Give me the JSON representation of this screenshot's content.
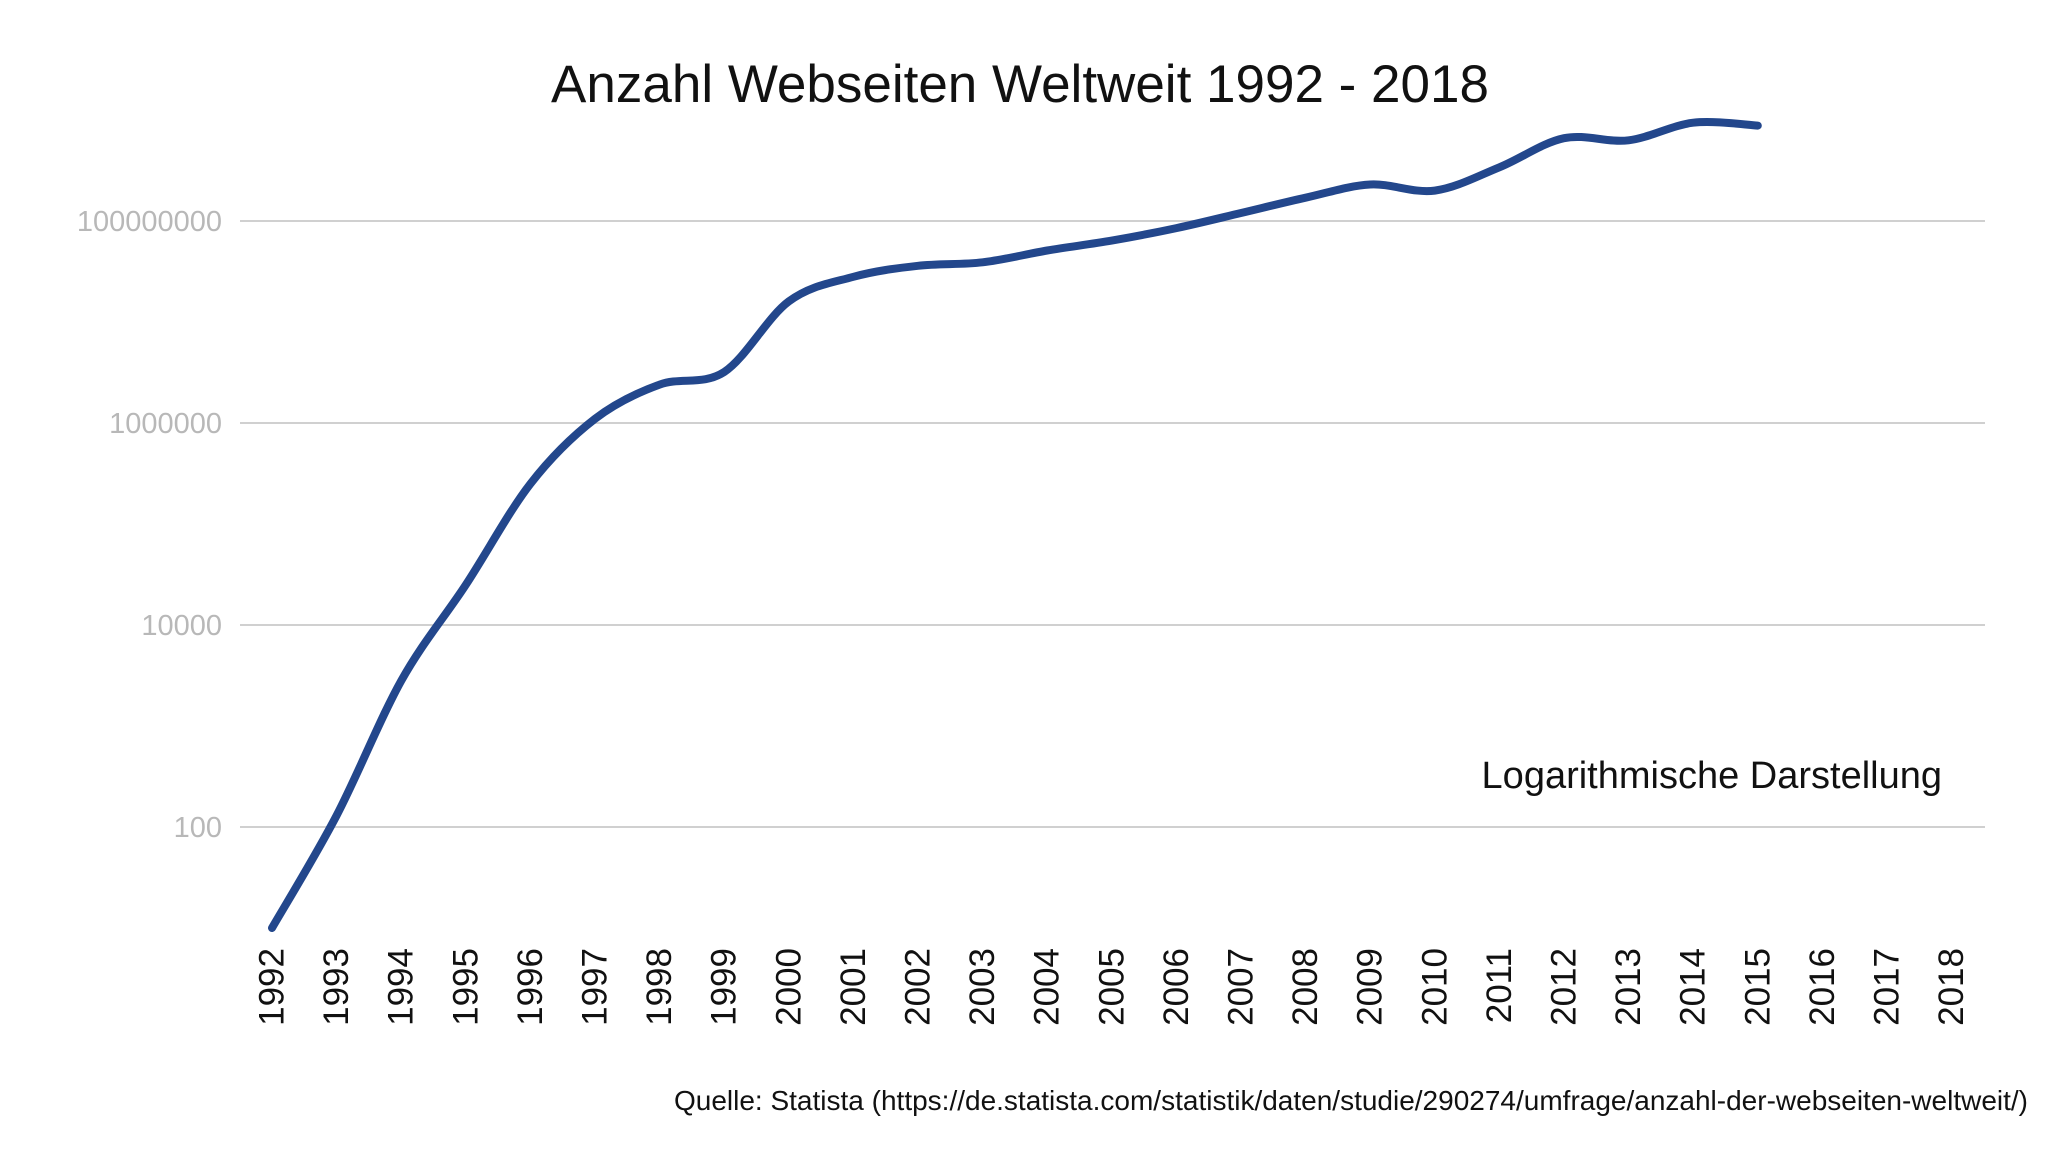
{
  "chart_data": {
    "type": "line",
    "title": "Anzahl Webseiten Weltweit 1992 - 2018",
    "xlabel": "",
    "ylabel": "",
    "y_scale": "log",
    "ylim": [
      10,
      1000000000
    ],
    "grid": true,
    "y_ticks": [
      100,
      10000,
      1000000,
      100000000
    ],
    "y_tick_labels": [
      "100",
      "10000",
      "1000000",
      "100000000"
    ],
    "categories": [
      "1992",
      "1993",
      "1994",
      "1995",
      "1996",
      "1997",
      "1998",
      "1999",
      "2000",
      "2001",
      "2002",
      "2003",
      "2004",
      "2005",
      "2006",
      "2007",
      "2008",
      "2009",
      "2010",
      "2011",
      "2012",
      "2013",
      "2014",
      "2015",
      "2016",
      "2017",
      "2018"
    ],
    "series": [
      {
        "values": [
          10,
          130,
          2800,
          25000,
          250000,
          1100000,
          2400000,
          3200000,
          16000000,
          28000000,
          36000000,
          39000000,
          51000000,
          64000000,
          85000000,
          120000000,
          170000000,
          230000000,
          200000000,
          340000000,
          660000000,
          630000000,
          940000000,
          880000000,
          null,
          null,
          null
        ]
      }
    ],
    "annotations": [
      "Logarithmische Darstellung"
    ],
    "source": "Quelle: Statista (https://de.statista.com/statistik/daten/studie/290274/umfrage/anzahl-der-webseiten-weltweit/)",
    "colors": {
      "series": "#23478c",
      "grid": "#d0d0d0",
      "y_tick_text": "#b8b8b8",
      "text": "#111111",
      "background": "#ffffff"
    }
  }
}
